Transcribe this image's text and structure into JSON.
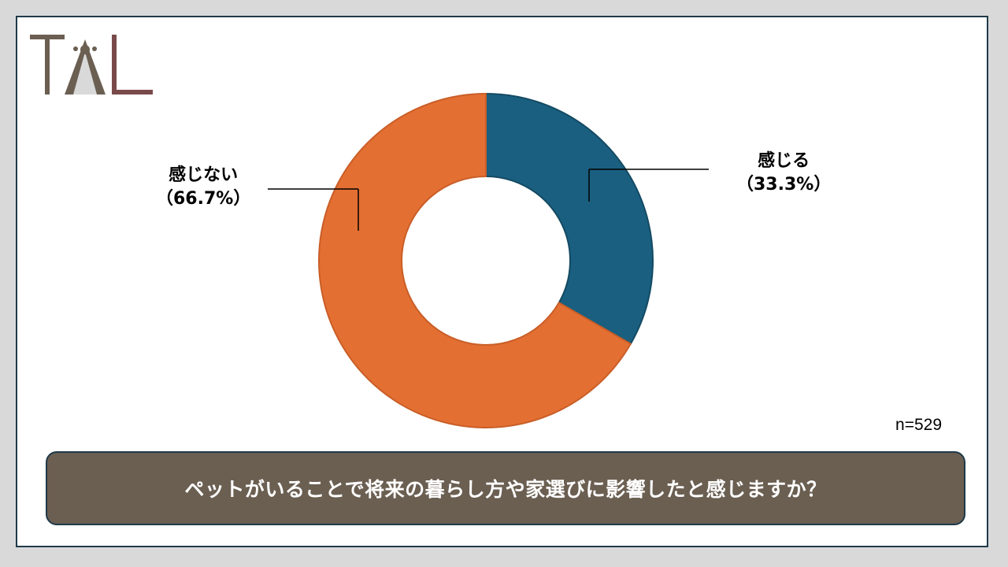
{
  "logo": {
    "text": "TAL",
    "colors": {
      "t": "#6b5f52",
      "a": "#6b5f52",
      "l": "#7a4a4a"
    }
  },
  "sample_note": "n=529",
  "question": "ペットがいることで将来の暮らし方や家選びに影響したと感じますか？",
  "colors": {
    "feel": "#1a5f7f",
    "not_feel": "#e46f32",
    "box": "#6b5f52",
    "border": "#1f3a4a"
  },
  "chart_data": {
    "type": "pie",
    "donut": true,
    "slices": [
      {
        "label": "感じる",
        "percent_label": "（33.3%）",
        "value": 33.3,
        "color": "#1a5f7f"
      },
      {
        "label": "感じない",
        "percent_label": "（66.7%）",
        "value": 66.7,
        "color": "#e46f32"
      }
    ],
    "start": "top",
    "direction": "clockwise"
  }
}
